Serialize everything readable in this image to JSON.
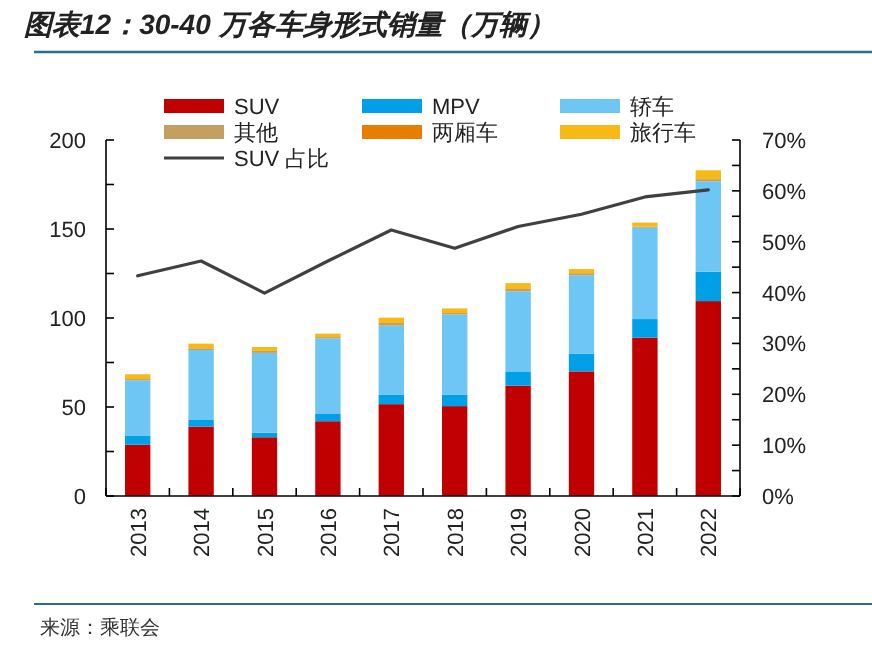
{
  "chart_data": {
    "type": "bar",
    "title": "图表12：30-40 万各车身形式销量（万辆）",
    "stacked": true,
    "legend": "top",
    "grid": false,
    "categories": [
      "2013",
      "2014",
      "2015",
      "2016",
      "2017",
      "2018",
      "2019",
      "2020",
      "2021",
      "2022"
    ],
    "series": [
      {
        "name": "SUV",
        "color": "#c00000",
        "values": [
          28.8,
          39,
          33,
          42,
          51.6,
          50.5,
          62,
          70,
          89,
          109.5
        ]
      },
      {
        "name": "MPV",
        "color": "#00a0e9",
        "values": [
          5.2,
          4,
          2.5,
          4.4,
          5.2,
          6.3,
          8,
          10,
          10.4,
          16.5
        ]
      },
      {
        "name": "轿车",
        "color": "#6ec6f5",
        "values": [
          31,
          39,
          44.9,
          42.2,
          38.9,
          45.2,
          45,
          44,
          51.3,
          50.8
        ]
      },
      {
        "name": "其他",
        "color": "#c4a060",
        "values": [
          0.7,
          1,
          1.1,
          0.7,
          1.5,
          0.8,
          1.3,
          1.2,
          0.7,
          1.2
        ]
      },
      {
        "name": "两厢车",
        "color": "#e67e00",
        "values": [
          0,
          0,
          0,
          0,
          0,
          0,
          0,
          0,
          0,
          0
        ]
      },
      {
        "name": "旅行车",
        "color": "#f6b916",
        "values": [
          2.7,
          2.6,
          2.2,
          1.9,
          3,
          2.6,
          3.3,
          2.3,
          2.2,
          5
        ]
      },
      {
        "name": "SUV 占比",
        "type": "line",
        "axis": "y2",
        "color": "#404040",
        "values": [
          43.3,
          46.2,
          39.9,
          46.2,
          52.3,
          48.7,
          53.0,
          55.4,
          58.8,
          60.2
        ]
      }
    ],
    "ylim": [
      0,
      200
    ],
    "yticks": [
      0,
      {
        "value": 25,
        "label": null
      },
      50,
      {
        "value": 75,
        "label": null
      },
      100,
      {
        "value": 125,
        "label": null
      },
      150,
      {
        "value": 175,
        "label": null
      },
      200
    ],
    "y2lim": [
      0,
      70
    ],
    "y2ticks": [
      {
        "value": 0,
        "label": "0%"
      },
      {
        "value": 5,
        "label": null
      },
      {
        "value": 10,
        "label": "10%"
      },
      {
        "value": 15,
        "label": null
      },
      {
        "value": 20,
        "label": "20%"
      },
      {
        "value": 25,
        "label": null
      },
      {
        "value": 30,
        "label": "30%"
      },
      {
        "value": 35,
        "label": null
      },
      {
        "value": 40,
        "label": "40%"
      },
      {
        "value": 45,
        "label": null
      },
      {
        "value": 50,
        "label": "50%"
      },
      {
        "value": 55,
        "label": null
      },
      {
        "value": 60,
        "label": "60%"
      },
      {
        "value": 65,
        "label": null
      },
      {
        "value": 70,
        "label": "70%"
      }
    ],
    "annotations": [
      "来源：乘联会"
    ]
  }
}
